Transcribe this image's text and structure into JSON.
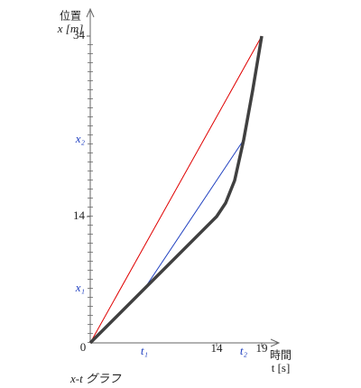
{
  "chart_data": {
    "type": "line",
    "title": "x-t グラフ",
    "y_label_top": "位置",
    "y_label": "x [m]",
    "x_label_top": "時間",
    "x_label": "t [s]",
    "origin_label": "0",
    "xlim": [
      0,
      20.5
    ],
    "ylim": [
      0,
      36.8
    ],
    "xticks": [
      14,
      19
    ],
    "yticks": [
      14,
      34
    ],
    "series": [
      {
        "color": "#404040",
        "x": [
          0,
          14,
          15,
          16,
          17,
          18,
          19
        ],
        "values": [
          0,
          14,
          15.5,
          18,
          22.5,
          28,
          34
        ]
      },
      {
        "color": "#e00000",
        "x": [
          0,
          19
        ],
        "values": [
          0,
          34
        ]
      },
      {
        "color": "#2040c0",
        "x": [
          6,
          17
        ],
        "values": [
          6,
          22.5
        ]
      }
    ],
    "annotations": [
      {
        "label": "t₁",
        "x": 6
      },
      {
        "label": "t₂",
        "x": 17
      },
      {
        "label": "x₁",
        "y": 6
      },
      {
        "label": "x₂",
        "y": 22.5
      }
    ]
  }
}
